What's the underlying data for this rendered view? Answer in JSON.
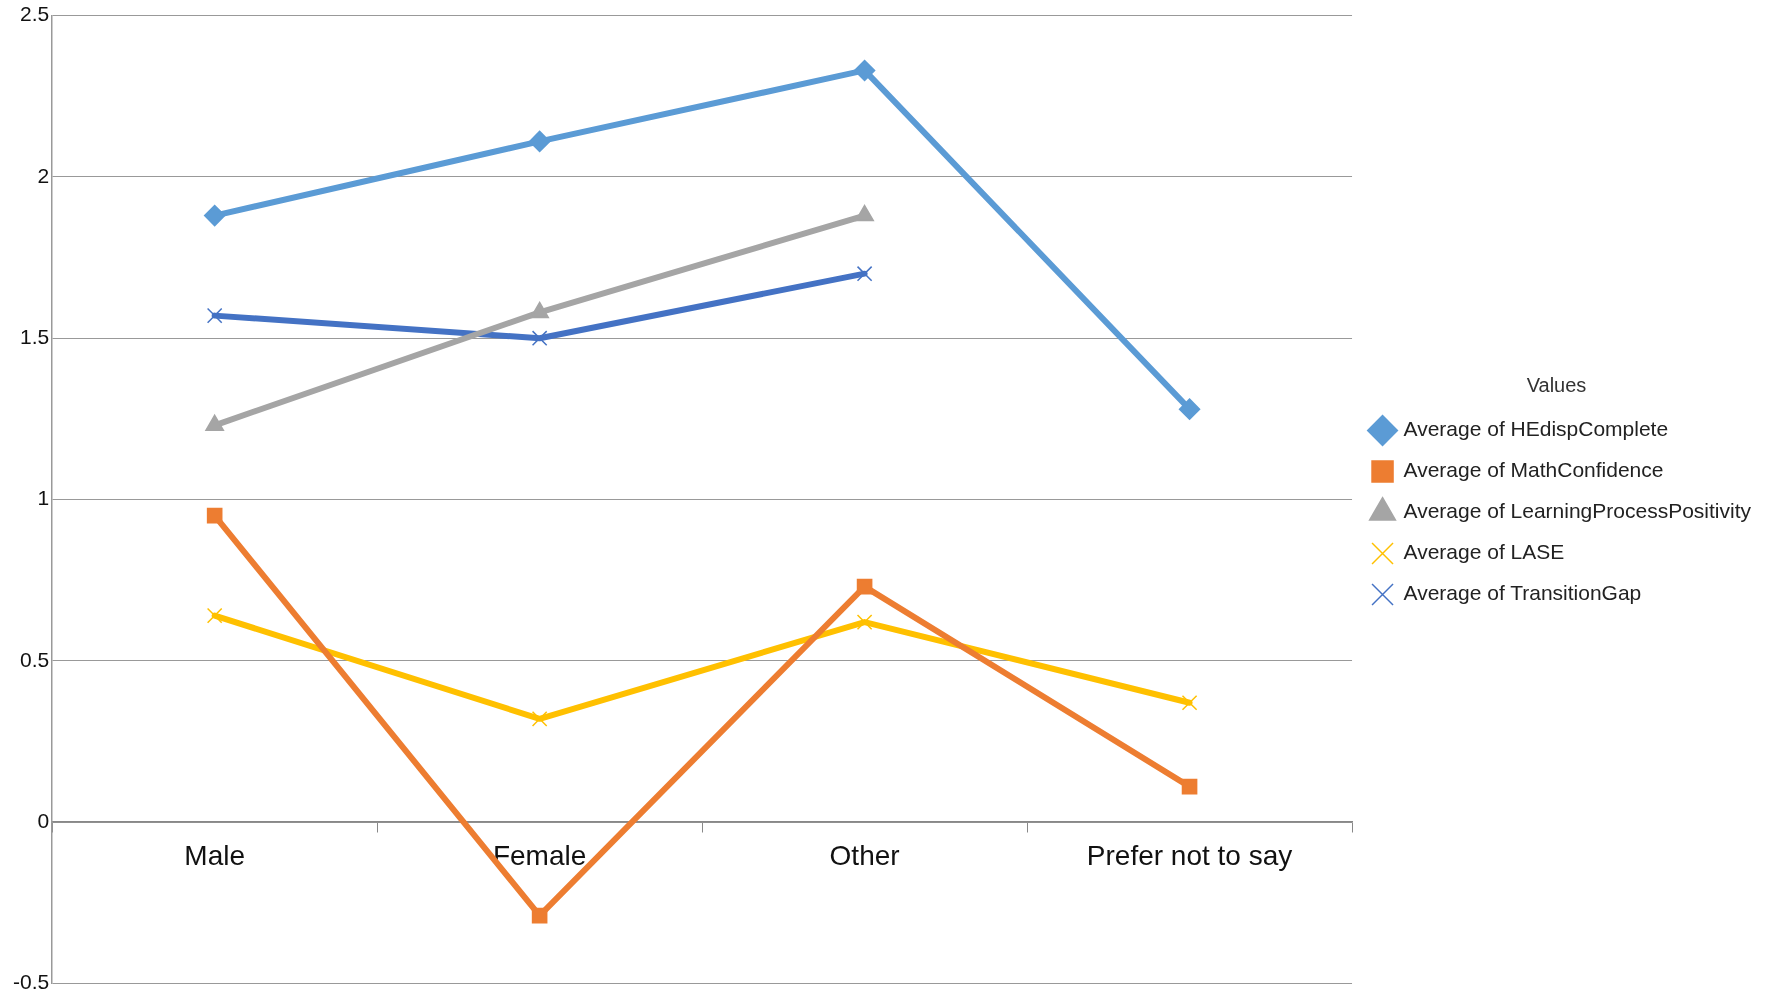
{
  "chart_data": {
    "type": "line",
    "categories": [
      "Male",
      "Female",
      "Other",
      "Prefer not to say"
    ],
    "series": [
      {
        "name": "Average of HEdispComplete",
        "color": "#5b9bd5",
        "marker": "diamond",
        "values": [
          1.88,
          2.11,
          2.33,
          1.28
        ]
      },
      {
        "name": "Average of MathConfidence",
        "color": "#ed7d31",
        "marker": "square",
        "values": [
          0.95,
          -0.29,
          0.73,
          0.11
        ]
      },
      {
        "name": "Average of LearningProcessPositivity",
        "color": "#a5a5a5",
        "marker": "triangle",
        "values": [
          1.23,
          1.58,
          1.88,
          null
        ]
      },
      {
        "name": "Average of LASE",
        "color": "#ffc000",
        "marker": "cross",
        "values": [
          0.64,
          0.32,
          0.62,
          0.37
        ]
      },
      {
        "name": "Average of TransitionGap",
        "color": "#4472c4",
        "marker": "cross",
        "values": [
          1.57,
          1.5,
          1.7,
          null
        ]
      }
    ],
    "ylim": [
      -0.5,
      2.5
    ],
    "yticks": [
      -0.5,
      0,
      0.5,
      1,
      1.5,
      2,
      2.5
    ],
    "grid": "y",
    "legend": "right",
    "legend_title": "Values",
    "line_style": "solid"
  }
}
